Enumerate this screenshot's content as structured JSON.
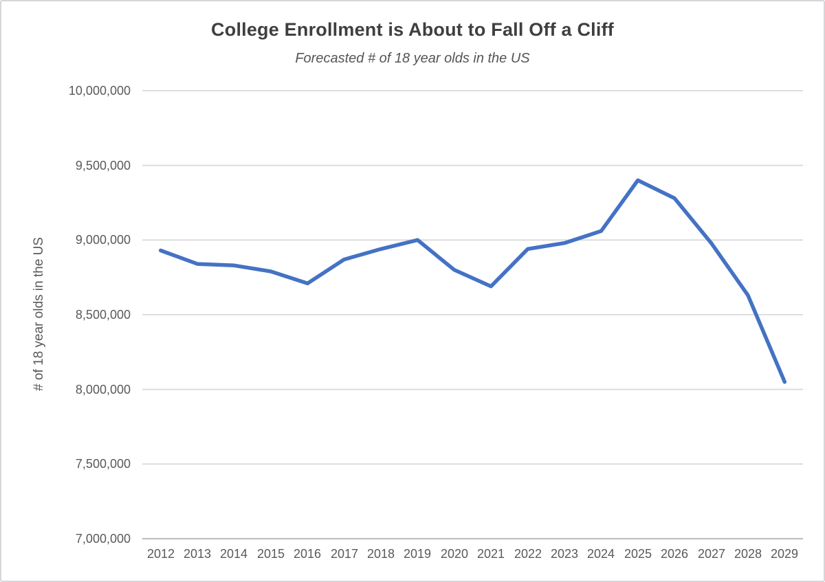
{
  "page": {
    "background": "#ffffff",
    "border_color": "#d6d6d9"
  },
  "chart_data": {
    "type": "line",
    "title": "College Enrollment is About to Fall Off a Cliff",
    "subtitle": "Forecasted # of 18 year olds in the US",
    "ylabel": "# of 18 year olds in the US",
    "xlabel": "",
    "categories": [
      "2012",
      "2013",
      "2014",
      "2015",
      "2016",
      "2017",
      "2018",
      "2019",
      "2020",
      "2021",
      "2022",
      "2023",
      "2024",
      "2025",
      "2026",
      "2027",
      "2028",
      "2029"
    ],
    "series": [
      {
        "name": "Forecasted # of 18 year olds in the US",
        "values": [
          8930000,
          8840000,
          8830000,
          8790000,
          8710000,
          8870000,
          8940000,
          9000000,
          8800000,
          8690000,
          8940000,
          8980000,
          9060000,
          9400000,
          9280000,
          8980000,
          8630000,
          8050000
        ]
      }
    ],
    "ylim": [
      7000000,
      10000000
    ],
    "ytick_step": 500000,
    "yticks": [
      {
        "value": 10000000,
        "label": "10,000,000"
      },
      {
        "value": 9500000,
        "label": "9,500,000"
      },
      {
        "value": 9000000,
        "label": "9,000,000"
      },
      {
        "value": 8500000,
        "label": "8,500,000"
      },
      {
        "value": 8000000,
        "label": "8,000,000"
      },
      {
        "value": 7500000,
        "label": "7,500,000"
      },
      {
        "value": 7000000,
        "label": "7,000,000"
      }
    ],
    "grid": true,
    "legend": "none",
    "colors": {
      "line": "#4472C4",
      "gridline": "#d9d9d9",
      "axis_line": "#bfbfbf",
      "title_text": "#3f3f3f",
      "subtitle_text": "#555555",
      "tick_text": "#595959"
    }
  }
}
